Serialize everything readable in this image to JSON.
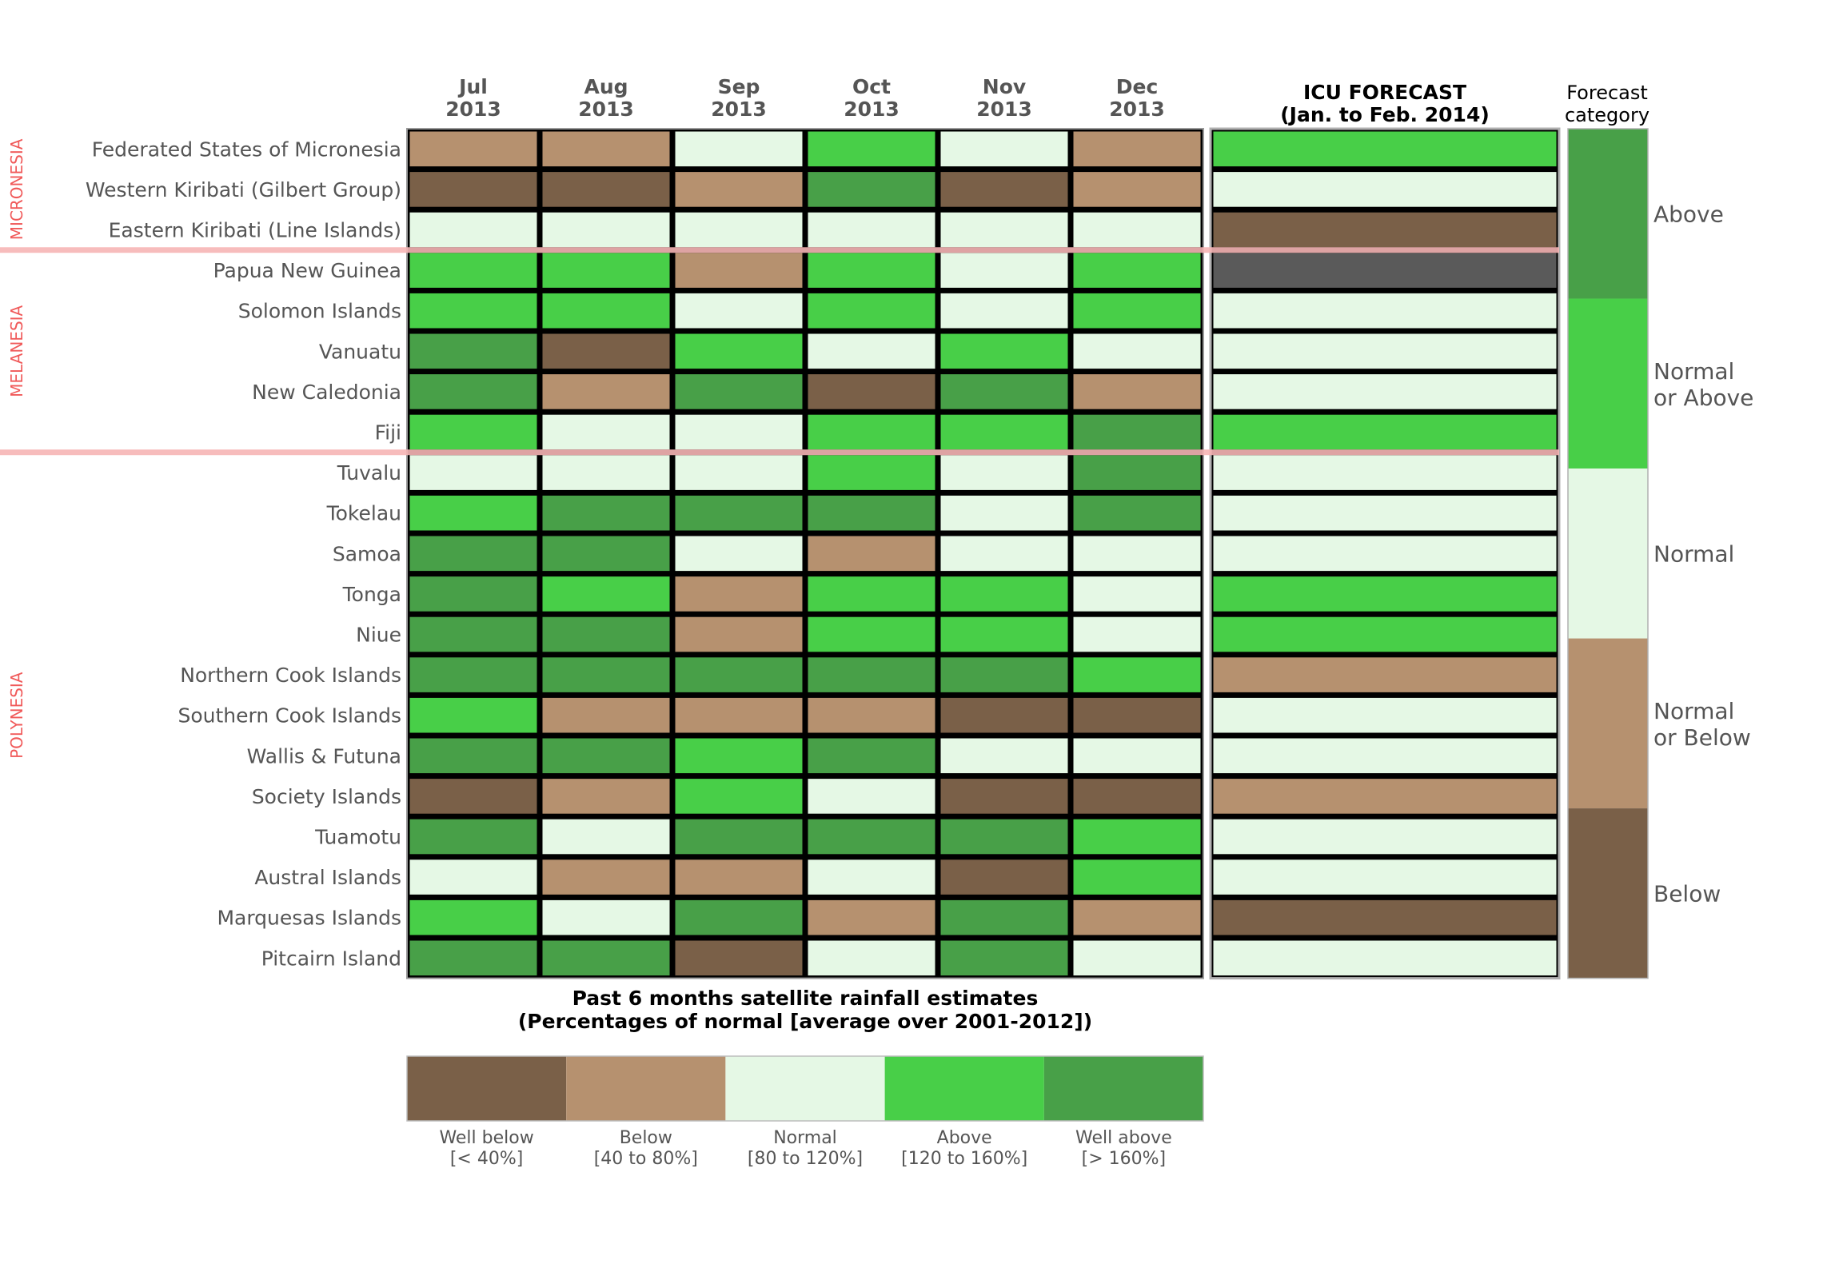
{
  "chart_data": {
    "type": "heatmap",
    "title": "Past 6 months satellite rainfall estimates",
    "subtitle": "(Percentages of normal [average over 2001-2012])",
    "months": [
      {
        "month": "Jul",
        "year": "2013"
      },
      {
        "month": "Aug",
        "year": "2013"
      },
      {
        "month": "Sep",
        "year": "2013"
      },
      {
        "month": "Oct",
        "year": "2013"
      },
      {
        "month": "Nov",
        "year": "2013"
      },
      {
        "month": "Dec",
        "year": "2013"
      }
    ],
    "forecast_header": {
      "line1": "ICU FORECAST",
      "line2": "(Jan. to Feb. 2014)"
    },
    "forecast_category_header": {
      "line1": "Forecast",
      "line2": "category"
    },
    "regions": [
      {
        "name": "MICRONESIA",
        "first_row": 0,
        "last_row": 2
      },
      {
        "name": "MELANESIA",
        "first_row": 3,
        "last_row": 7
      },
      {
        "name": "POLYNESIA",
        "first_row": 8,
        "last_row": 20
      }
    ],
    "rows": [
      {
        "name": "Federated States of Micronesia",
        "values": [
          "below",
          "below",
          "normal",
          "above",
          "normal",
          "below"
        ],
        "forecast": "normal_or_above"
      },
      {
        "name": "Western Kiribati (Gilbert Group)",
        "values": [
          "well_below",
          "well_below",
          "below",
          "well_above",
          "well_below",
          "below"
        ],
        "forecast": "normal"
      },
      {
        "name": "Eastern Kiribati (Line Islands)",
        "values": [
          "normal",
          "normal",
          "normal",
          "normal",
          "normal",
          "normal"
        ],
        "forecast": "below"
      },
      {
        "name": "Papua New Guinea",
        "values": [
          "above",
          "above",
          "below",
          "above",
          "normal",
          "above"
        ],
        "forecast": "none"
      },
      {
        "name": "Solomon Islands",
        "values": [
          "above",
          "above",
          "normal",
          "above",
          "normal",
          "above"
        ],
        "forecast": "normal"
      },
      {
        "name": "Vanuatu",
        "values": [
          "well_above",
          "well_below",
          "above",
          "normal",
          "above",
          "normal"
        ],
        "forecast": "normal"
      },
      {
        "name": "New Caledonia",
        "values": [
          "well_above",
          "below",
          "well_above",
          "well_below",
          "well_above",
          "below"
        ],
        "forecast": "normal"
      },
      {
        "name": "Fiji",
        "values": [
          "above",
          "normal",
          "normal",
          "above",
          "above",
          "well_above"
        ],
        "forecast": "normal_or_above"
      },
      {
        "name": "Tuvalu",
        "values": [
          "normal",
          "normal",
          "normal",
          "above",
          "normal",
          "well_above"
        ],
        "forecast": "normal"
      },
      {
        "name": "Tokelau",
        "values": [
          "above",
          "well_above",
          "well_above",
          "well_above",
          "normal",
          "well_above"
        ],
        "forecast": "normal"
      },
      {
        "name": "Samoa",
        "values": [
          "well_above",
          "well_above",
          "normal",
          "below",
          "normal",
          "normal"
        ],
        "forecast": "normal"
      },
      {
        "name": "Tonga",
        "values": [
          "well_above",
          "above",
          "below",
          "above",
          "above",
          "normal"
        ],
        "forecast": "normal_or_above"
      },
      {
        "name": "Niue",
        "values": [
          "well_above",
          "well_above",
          "below",
          "above",
          "above",
          "normal"
        ],
        "forecast": "normal_or_above"
      },
      {
        "name": "Northern Cook Islands",
        "values": [
          "well_above",
          "well_above",
          "well_above",
          "well_above",
          "well_above",
          "above"
        ],
        "forecast": "normal_or_below"
      },
      {
        "name": "Southern Cook Islands",
        "values": [
          "above",
          "below",
          "below",
          "below",
          "well_below",
          "well_below"
        ],
        "forecast": "normal"
      },
      {
        "name": "Wallis & Futuna",
        "values": [
          "well_above",
          "well_above",
          "above",
          "well_above",
          "normal",
          "normal"
        ],
        "forecast": "normal"
      },
      {
        "name": "Society Islands",
        "values": [
          "well_below",
          "below",
          "above",
          "normal",
          "well_below",
          "well_below"
        ],
        "forecast": "normal_or_below"
      },
      {
        "name": "Tuamotu",
        "values": [
          "well_above",
          "normal",
          "well_above",
          "well_above",
          "well_above",
          "above"
        ],
        "forecast": "normal"
      },
      {
        "name": "Austral Islands",
        "values": [
          "normal",
          "below",
          "below",
          "normal",
          "well_below",
          "above"
        ],
        "forecast": "normal"
      },
      {
        "name": "Marquesas Islands",
        "values": [
          "above",
          "normal",
          "well_above",
          "below",
          "well_above",
          "below"
        ],
        "forecast": "below"
      },
      {
        "name": "Pitcairn Island",
        "values": [
          "well_above",
          "well_above",
          "well_below",
          "normal",
          "well_above",
          "normal"
        ],
        "forecast": "normal"
      }
    ],
    "rainfall_legend": [
      {
        "key": "well_below",
        "label": "Well below",
        "range": "[< 40%]",
        "color": "#7a6048"
      },
      {
        "key": "below",
        "label": "Below",
        "range": "[40 to 80%]",
        "color": "#b6916f"
      },
      {
        "key": "normal",
        "label": "Normal",
        "range": "[80 to 120%]",
        "color": "#e5f8e5"
      },
      {
        "key": "above",
        "label": "Above",
        "range": "[120 to 160%]",
        "color": "#48cf48"
      },
      {
        "key": "well_above",
        "label": "Well above",
        "range": "[> 160%]",
        "color": "#48a048"
      }
    ],
    "forecast_legend": [
      {
        "key": "above",
        "line1": "Above",
        "line2": "",
        "color": "#48a048"
      },
      {
        "key": "normal_or_above",
        "line1": "Normal",
        "line2": "or Above",
        "color": "#48cf48"
      },
      {
        "key": "normal",
        "line1": "Normal",
        "line2": "",
        "color": "#e5f8e5"
      },
      {
        "key": "normal_or_below",
        "line1": "Normal",
        "line2": "or Below",
        "color": "#b6916f"
      },
      {
        "key": "below",
        "line1": "Below",
        "line2": "",
        "color": "#7a6048"
      }
    ],
    "forecast_colors": {
      "above": "#48a048",
      "normal_or_above": "#48cf48",
      "normal": "#e5f8e5",
      "normal_or_below": "#b6916f",
      "below": "#7a6048",
      "none": "#5a5a5a"
    },
    "colors": {
      "region_label": "#f05a5a",
      "region_divider": "#f7b5b5",
      "text": "#555555"
    }
  }
}
